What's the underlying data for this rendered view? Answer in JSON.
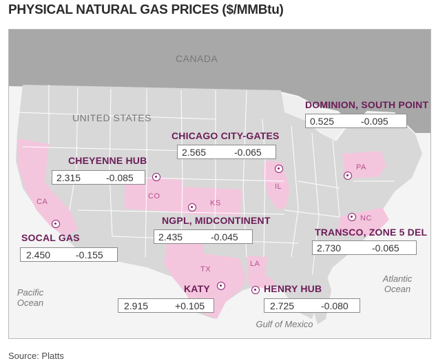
{
  "title": "PHYSICAL NATURAL GAS PRICES ($/MMBtu)",
  "source": "Source: Platts",
  "geo_labels": {
    "canada": "CANADA",
    "united_states": "UNITED STATES",
    "pacific": "Pacific\nOcean",
    "atlantic": "Atlantic\nOcean",
    "gulf": "Gulf of Mexico"
  },
  "states": {
    "ca": "CA",
    "co": "CO",
    "ks": "KS",
    "tx": "TX",
    "la": "LA",
    "il": "IL",
    "pa": "PA",
    "nc": "NC"
  },
  "hubs": [
    {
      "name": "DOMINION, SOUTH POINT",
      "price": "0.525",
      "change": "-0.095"
    },
    {
      "name": "CHICAGO CITY-GATES",
      "price": "2.565",
      "change": "-0.065"
    },
    {
      "name": "CHEYENNE HUB",
      "price": "2.315",
      "change": "-0.085"
    },
    {
      "name": "NGPL, MIDCONTINENT",
      "price": "2.435",
      "change": "-0.045"
    },
    {
      "name": "TRANSCO, ZONE 5 DEL",
      "price": "2.730",
      "change": "-0.065"
    },
    {
      "name": "SOCAL GAS",
      "price": "2.450",
      "change": "-0.155"
    },
    {
      "name": "KATY",
      "price": "2.915",
      "change": "+0.105"
    },
    {
      "name": "HENRY HUB",
      "price": "2.725",
      "change": "-0.080"
    }
  ],
  "colors": {
    "highlight_state": "#f4c6dd",
    "us_land": "#d8d8d8",
    "canada_land": "#a8a8a8",
    "water": "#f4f4f4",
    "hub_label": "#6b1c57",
    "marker": "#8c1f6e"
  }
}
